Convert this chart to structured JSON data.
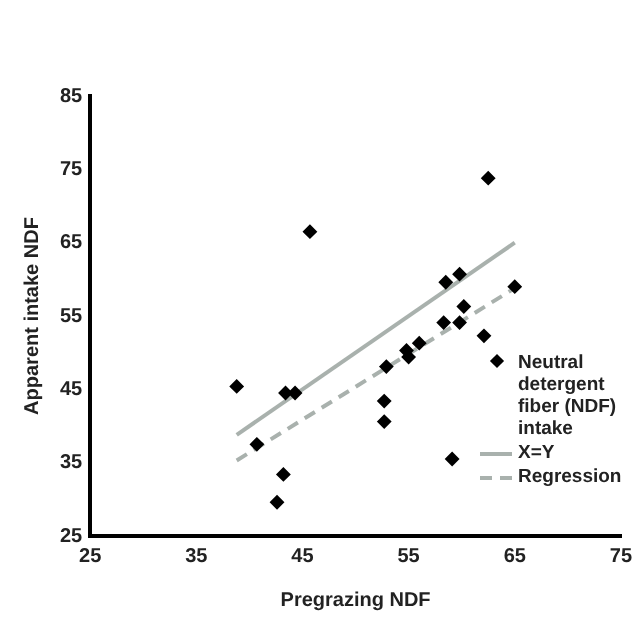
{
  "chart_data": {
    "type": "scatter",
    "xlabel": "Pregrazing NDF",
    "ylabel": "Apparent intake NDF",
    "xlim": [
      25,
      75
    ],
    "xticks": [
      25,
      35,
      45,
      55,
      65,
      75
    ],
    "ylim": [
      25,
      85
    ],
    "yticks": [
      25,
      35,
      45,
      55,
      65,
      75,
      85
    ],
    "grid": false,
    "legend": "bottom right",
    "marker": "diamond",
    "series": [
      {
        "name": "Neutral detergent fiber (NDF) intake",
        "color": "#000000",
        "x": [
          38.8,
          40.7,
          43.2,
          42.6,
          43.4,
          44.3,
          45.7,
          52.7,
          52.7,
          52.9,
          54.8,
          55.0,
          56.0,
          58.3,
          58.5,
          59.1,
          59.8,
          59.8,
          60.2,
          62.1,
          62.5,
          65.0
        ],
        "values": [
          45.4,
          37.5,
          33.4,
          29.6,
          44.5,
          44.5,
          66.5,
          43.4,
          40.6,
          48.1,
          50.3,
          49.4,
          51.3,
          54.1,
          59.6,
          35.5,
          54.1,
          60.7,
          56.3,
          52.3,
          73.8,
          59.0
        ]
      },
      {
        "name": "X=Y",
        "type": "line",
        "color": "#a9b1ad",
        "line_style": "solid",
        "marker": "none",
        "x": [
          38.8,
          65
        ],
        "values": [
          38.8,
          65
        ]
      },
      {
        "name": "Regression",
        "type": "line",
        "color": "#a9b1ad",
        "line_style": "dashed",
        "marker": "none",
        "x": [
          38.8,
          65
        ],
        "values": [
          35.3,
          58.8
        ]
      }
    ]
  }
}
